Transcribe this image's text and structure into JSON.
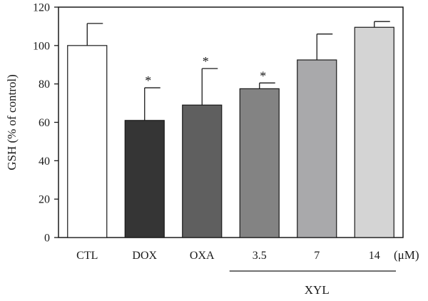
{
  "chart_data": {
    "type": "bar",
    "ylabel": "GSH (% of control)",
    "ylim": [
      0,
      120
    ],
    "yticks": [
      0,
      20,
      40,
      60,
      80,
      100,
      120
    ],
    "categories": [
      "CTL",
      "DOX",
      "OXA",
      "3.5",
      "7",
      "14"
    ],
    "values": [
      100,
      61,
      69,
      77.5,
      92.5,
      109.5
    ],
    "error_upper": [
      111.5,
      78,
      88,
      80.5,
      106,
      112.5
    ],
    "significance": [
      "",
      "*",
      "*",
      "*",
      "",
      ""
    ],
    "bar_colors": [
      "#ffffff",
      "#353535",
      "#5f5f5f",
      "#838383",
      "#a9a9ab",
      "#d4d4d4"
    ],
    "unit_label": "(μM)",
    "group_label": "XYL",
    "group_members": [
      "3.5",
      "7",
      "14"
    ],
    "grid": false
  }
}
